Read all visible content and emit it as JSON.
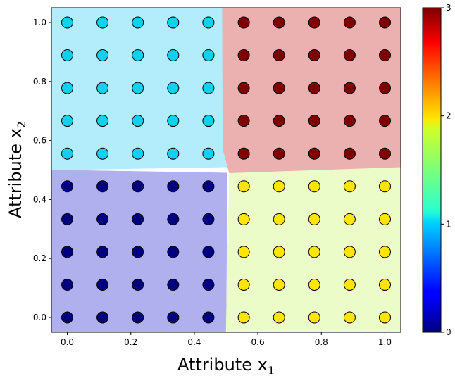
{
  "chart_data": {
    "type": "scatter",
    "title": "",
    "xlabel": "Attribute x",
    "xlabel_sub": "1",
    "ylabel": "Attribute x",
    "ylabel_sub": "2",
    "xlim": [
      -0.05,
      1.05
    ],
    "ylim": [
      -0.05,
      1.05
    ],
    "xticks": [
      0.0,
      0.2,
      0.4,
      0.6,
      0.8,
      1.0
    ],
    "xtick_labels": [
      "0.0",
      "0.2",
      "0.4",
      "0.6",
      "0.8",
      "1.0"
    ],
    "yticks": [
      0.0,
      0.2,
      0.4,
      0.6,
      0.8,
      1.0
    ],
    "ytick_labels": [
      "0.0",
      "0.2",
      "0.4",
      "0.6",
      "0.8",
      "1.0"
    ],
    "grid_values": [
      0.0,
      0.1111,
      0.2222,
      0.3333,
      0.4444,
      0.5556,
      0.6667,
      0.7778,
      0.8889,
      1.0
    ],
    "class_rule": "class 0: x1<0.5 and x2<0.5; class 1: x1<0.5 and x2>=0.5; class 2: x1>=0.5 and x2<0.5; class 3: x1>=0.5 and x2>=0.5",
    "class_colors": [
      "#00007f",
      "#10d0f0",
      "#ffe500",
      "#7f0000"
    ],
    "region_colors": [
      "#b0b0ee",
      "#b3ecfb",
      "#ebfcc9",
      "#ebb0b0"
    ],
    "decision_regions": [
      {
        "class": 0,
        "polygon": [
          [
            -0.05,
            -0.05
          ],
          [
            0.5,
            -0.05
          ],
          [
            0.503,
            0.49
          ],
          [
            -0.05,
            0.5
          ]
        ]
      },
      {
        "class": 1,
        "polygon": [
          [
            -0.05,
            0.5
          ],
          [
            0.503,
            0.51
          ],
          [
            0.49,
            0.57
          ],
          [
            0.488,
            1.05
          ],
          [
            -0.05,
            1.05
          ]
        ]
      },
      {
        "class": 2,
        "polygon": [
          [
            0.5,
            -0.05
          ],
          [
            1.05,
            -0.05
          ],
          [
            1.05,
            0.51
          ],
          [
            0.51,
            0.49
          ]
        ]
      },
      {
        "class": 3,
        "polygon": [
          [
            0.488,
            1.05
          ],
          [
            1.05,
            1.05
          ],
          [
            1.05,
            0.51
          ],
          [
            0.51,
            0.49
          ],
          [
            0.49,
            0.57
          ]
        ]
      }
    ],
    "colorbar": {
      "cmap": "jet",
      "range": [
        0,
        3
      ],
      "ticks": [
        0,
        1,
        2,
        3
      ],
      "tick_labels": [
        "0",
        "1",
        "2",
        "3"
      ]
    }
  }
}
